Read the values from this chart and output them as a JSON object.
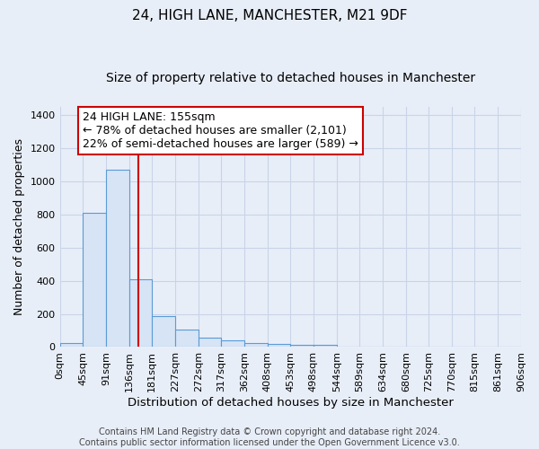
{
  "title": "24, HIGH LANE, MANCHESTER, M21 9DF",
  "subtitle": "Size of property relative to detached houses in Manchester",
  "xlabel": "Distribution of detached houses by size in Manchester",
  "ylabel": "Number of detached properties",
  "bar_edges": [
    0,
    45,
    91,
    136,
    181,
    227,
    272,
    317,
    362,
    408,
    453,
    498,
    544,
    589,
    634,
    680,
    725,
    770,
    815,
    861,
    906
  ],
  "bar_heights": [
    25,
    810,
    1070,
    410,
    185,
    105,
    55,
    40,
    25,
    18,
    12,
    12,
    0,
    0,
    0,
    0,
    0,
    0,
    0,
    0
  ],
  "bar_color": "#d6e4f5",
  "bar_edge_color": "#5b9bd5",
  "grid_color": "#c8d4e8",
  "background_color": "#e8eef8",
  "red_line_x": 155,
  "annotation_text": "24 HIGH LANE: 155sqm\n← 78% of detached houses are smaller (2,101)\n22% of semi-detached houses are larger (589) →",
  "annotation_box_color": "#ffffff",
  "annotation_border_color": "#cc0000",
  "ylim": [
    0,
    1450
  ],
  "yticks": [
    0,
    200,
    400,
    600,
    800,
    1000,
    1200,
    1400
  ],
  "xtick_labels": [
    "0sqm",
    "45sqm",
    "91sqm",
    "136sqm",
    "181sqm",
    "227sqm",
    "272sqm",
    "317sqm",
    "362sqm",
    "408sqm",
    "453sqm",
    "498sqm",
    "544sqm",
    "589sqm",
    "634sqm",
    "680sqm",
    "725sqm",
    "770sqm",
    "815sqm",
    "861sqm",
    "906sqm"
  ],
  "footer_line1": "Contains HM Land Registry data © Crown copyright and database right 2024.",
  "footer_line2": "Contains public sector information licensed under the Open Government Licence v3.0.",
  "title_fontsize": 11,
  "subtitle_fontsize": 10,
  "xlabel_fontsize": 9.5,
  "ylabel_fontsize": 9,
  "annotation_fontsize": 9,
  "tick_fontsize": 8,
  "footer_fontsize": 7
}
